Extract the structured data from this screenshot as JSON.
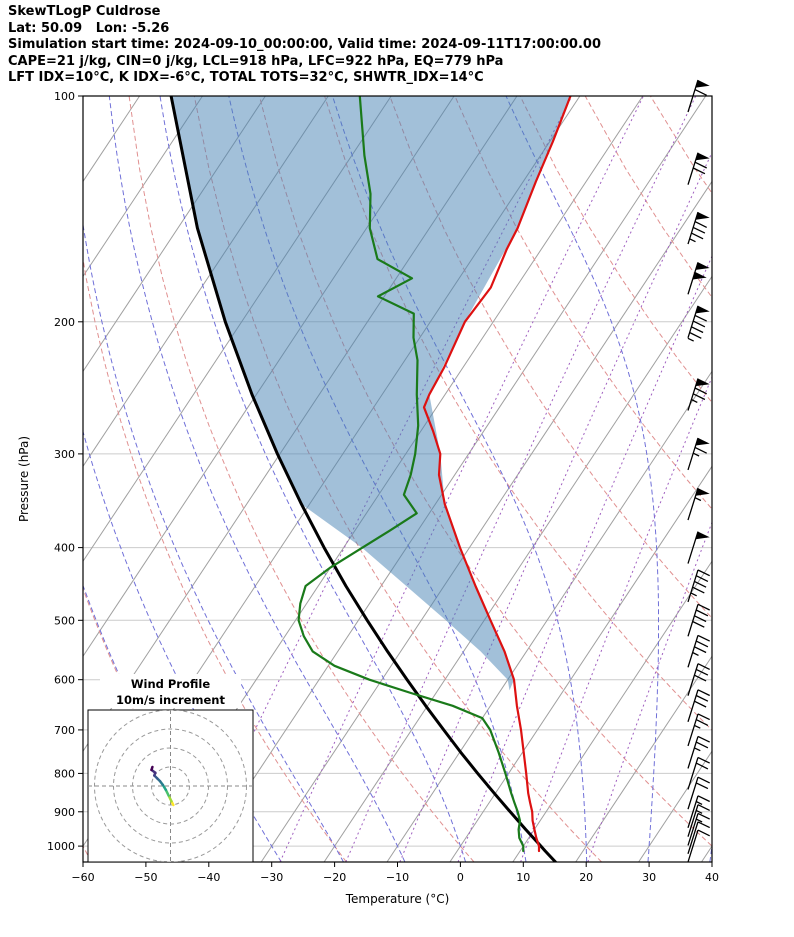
{
  "header": {
    "title": "SkewTLogP Culdrose",
    "location_line": "Lat: 50.09   Lon: -5.26",
    "time_line": "Simulation start time: 2024-09-10_00:00:00, Valid time: 2024-09-11T17:00:00.00",
    "indices_line1": "CAPE=21 j/kg, CIN=0 j/kg, LCL=918 hPa, LFC=922 hPa, EQ=779 hPa",
    "indices_line2": "LFT IDX=10°C, K IDX=-6°C, TOTAL TOTS=32°C, SHWTR_IDX=14°C"
  },
  "chart_data": {
    "type": "skewt",
    "title": "SkewTLogP Culdrose",
    "xlabel": "Temperature (°C)",
    "ylabel": "Pressure (hPa)",
    "temp_range": [
      -60,
      40
    ],
    "pressure_range": [
      100,
      1050
    ],
    "skew_shift_per_decade_C": 79,
    "x_ticks": [
      -60,
      -50,
      -40,
      -30,
      -20,
      -10,
      0,
      10,
      20,
      30,
      40
    ],
    "x_tick_labels": [
      "−60",
      "−50",
      "−40",
      "−30",
      "−20",
      "−10",
      "0",
      "10",
      "20",
      "30",
      "40"
    ],
    "y_ticks": [
      100,
      200,
      300,
      400,
      500,
      600,
      700,
      800,
      900,
      1000
    ],
    "y_tick_labels": [
      "100",
      "200",
      "300",
      "400",
      "500",
      "600",
      "700",
      "800",
      "900",
      "1000"
    ],
    "background": {
      "isotherms_C": [
        -140,
        -130,
        -120,
        -110,
        -100,
        -90,
        -80,
        -70,
        -60,
        -50,
        -40,
        -30,
        -20,
        -10,
        0,
        10,
        20,
        30,
        40
      ],
      "dry_adiabats_theta_C": [
        -60,
        -40,
        -20,
        0,
        20,
        40,
        60,
        80,
        100,
        120,
        140,
        160,
        180,
        200
      ],
      "moist_adiabats_start_C": [
        -40,
        -30,
        -20,
        -10,
        0,
        10,
        20,
        30,
        40,
        50,
        60
      ],
      "mixing_ratio_g_kg": [
        0.1,
        0.4,
        1,
        2,
        4,
        8,
        16
      ]
    },
    "temperature_profile": {
      "pressure_hPa": [
        1015,
        1000,
        975,
        950,
        925,
        900,
        875,
        850,
        800,
        750,
        700,
        650,
        600,
        550,
        500,
        450,
        400,
        350,
        320,
        300,
        280,
        260,
        250,
        230,
        200,
        180,
        160,
        150,
        130,
        115,
        100
      ],
      "temp_C": [
        13.0,
        12.5,
        11.2,
        10.0,
        8.8,
        7.8,
        6.5,
        5.2,
        2.8,
        0.2,
        -2.6,
        -5.8,
        -9.0,
        -13.5,
        -19.0,
        -25.0,
        -31.5,
        -38.5,
        -42.5,
        -44.5,
        -48.0,
        -52.0,
        -52.5,
        -53.0,
        -54.5,
        -54.0,
        -55.5,
        -56.0,
        -58.0,
        -59.5,
        -61.5
      ]
    },
    "dewpoint_profile": {
      "pressure_hPa": [
        1015,
        1000,
        975,
        950,
        925,
        900,
        875,
        850,
        800,
        750,
        700,
        675,
        650,
        625,
        600,
        575,
        550,
        525,
        500,
        475,
        450,
        425,
        400,
        380,
        360,
        340,
        320,
        300,
        275,
        250,
        225,
        210,
        195,
        185,
        175,
        165,
        150,
        135,
        120,
        100
      ],
      "temp_C": [
        10.5,
        10.0,
        8.5,
        7.5,
        6.8,
        5.5,
        4.0,
        2.5,
        -0.5,
        -3.8,
        -7.5,
        -10.0,
        -16.0,
        -24.0,
        -32.0,
        -39.0,
        -44.0,
        -47.0,
        -49.5,
        -51.0,
        -52.0,
        -50.0,
        -47.0,
        -44.5,
        -42.0,
        -46.0,
        -47.0,
        -48.5,
        -51.0,
        -54.5,
        -58.0,
        -61.0,
        -63.5,
        -71.0,
        -67.5,
        -75.0,
        -79.5,
        -83.0,
        -88.0,
        -95.0
      ]
    },
    "parcel_trace": {
      "pressure_hPa": [
        1050,
        1015,
        1000,
        950,
        900,
        850,
        800,
        750,
        700,
        650,
        600,
        550,
        500,
        450,
        400,
        350,
        300,
        250,
        200,
        150,
        100
      ],
      "temp_C": [
        16.8,
        14.0,
        12.8,
        8.6,
        4.3,
        -0.2,
        -4.9,
        -9.8,
        -14.9,
        -20.3,
        -26.0,
        -32.1,
        -38.6,
        -45.6,
        -53.1,
        -61.3,
        -70.4,
        -80.7,
        -92.6,
        -106.9,
        -125.0
      ]
    },
    "shaded_area": {
      "pressure_hPa": [
        620,
        600,
        550,
        500,
        450,
        400,
        350,
        300,
        250,
        200,
        150,
        100
      ],
      "left_C": [
        -8.6,
        -10.0,
        -17.3,
        -26.1,
        -36.0,
        -47.1,
        -61.3,
        -70.4,
        -80.7,
        -92.6,
        -106.9,
        -125.0
      ],
      "right_C": [
        -8.6,
        -9.0,
        -13.5,
        -19.0,
        -25.0,
        -31.5,
        -38.5,
        -44.5,
        -52.5,
        -54.5,
        -56.0,
        -61.5
      ]
    },
    "wind_barbs": {
      "pressure_hPa": [
        1000,
        975,
        950,
        925,
        900,
        850,
        800,
        750,
        700,
        650,
        600,
        550,
        500,
        450,
        400,
        350,
        300,
        250,
        200,
        175,
        150,
        125,
        100
      ],
      "speed_kt": [
        10,
        10,
        15,
        15,
        15,
        20,
        20,
        25,
        25,
        30,
        30,
        35,
        40,
        45,
        50,
        55,
        65,
        75,
        95,
        100,
        85,
        70,
        60
      ]
    },
    "hodograph": {
      "title": "Wind Profile",
      "subtitle": "10m/s increment",
      "ring_interval_ms": 10,
      "rings_ms": [
        10,
        20,
        30,
        40
      ],
      "u_ms": [
        1.5,
        0.5,
        -1,
        -2.5,
        -4,
        -5.5,
        -7,
        -8.5,
        -8,
        -10,
        -9.5
      ],
      "v_ms": [
        -10,
        -8,
        -5,
        -2,
        0.5,
        2.5,
        4,
        5.5,
        7,
        8.5,
        10
      ],
      "segment_colors": [
        "#fde725",
        "#9fda3a",
        "#4ac16d",
        "#20a386",
        "#277f8e",
        "#2e6e8e",
        "#365c8d",
        "#433e85",
        "#46327e",
        "#440154"
      ]
    },
    "colors": {
      "temperature": "#dd1111",
      "dewpoint": "#1a7a1a",
      "parcel": "#000000",
      "shade": "rgba(70,130,180,0.5)",
      "isotherm": "#a0a0a0",
      "pressure_grid": "#cccccc",
      "dry_adiabat": "#e09090",
      "moist_adiabat": "#7070d8",
      "mixing_ratio": "#a060c0",
      "barb": "#000000"
    }
  }
}
